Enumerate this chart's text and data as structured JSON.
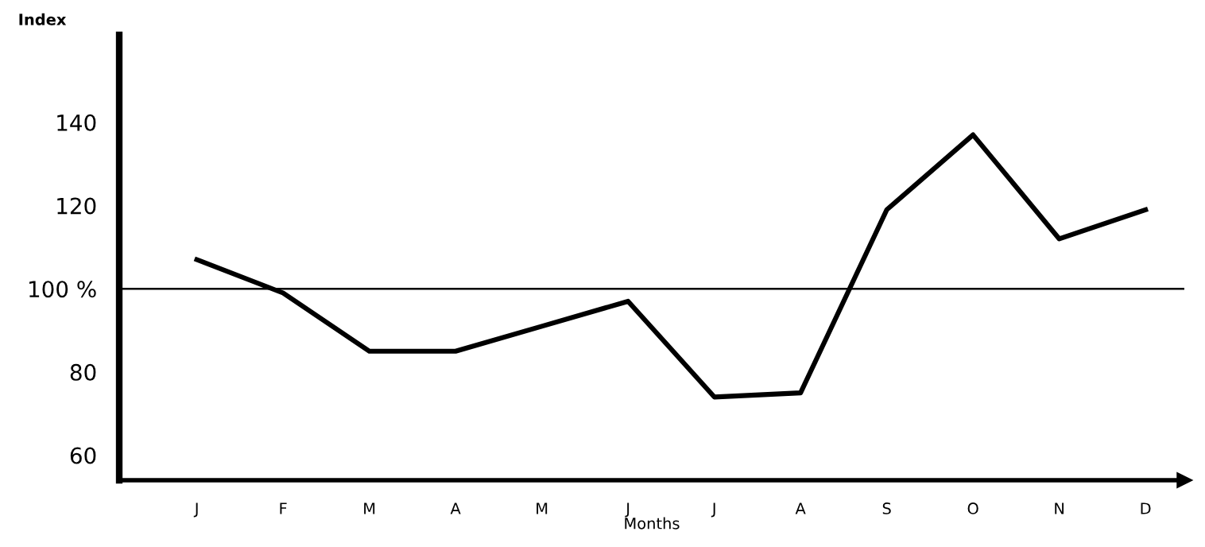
{
  "chart_data": {
    "type": "line",
    "xlabel": "Months",
    "ylabel": "Index",
    "categories": [
      "J",
      "F",
      "M",
      "A",
      "M",
      "J",
      "J",
      "A",
      "S",
      "O",
      "N",
      "D"
    ],
    "series": [
      {
        "color": "#000000",
        "values": [
          107,
          99,
          85,
          85,
          91,
          97,
          74,
          75,
          119,
          137,
          112,
          119
        ]
      }
    ],
    "ylim": [
      54,
      161
    ],
    "yticks": [
      60,
      80,
      {
        "value": 100,
        "label": "100 %"
      },
      120,
      140
    ],
    "ref_lines": [
      {
        "axis": "y",
        "value": 100,
        "color": "#000000",
        "line_style": "solid"
      }
    ],
    "grid": false,
    "legend": false,
    "marker": "none",
    "line_style": "solid"
  }
}
